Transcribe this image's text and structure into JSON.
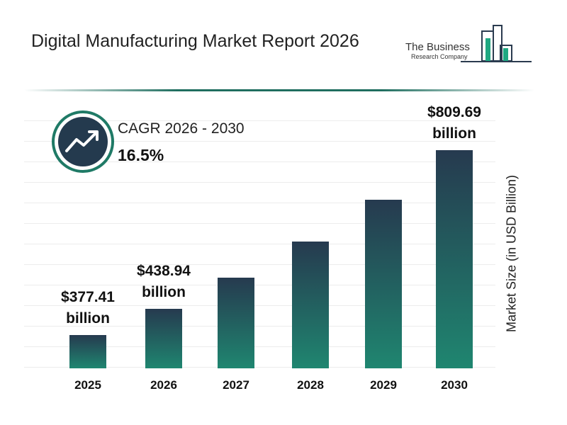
{
  "chart_data": {
    "type": "bar",
    "title": "Digital Manufacturing Market Report 2026",
    "logo": {
      "line1": "The Business",
      "line2": "Research Company"
    },
    "cagr_label": "CAGR 2026 - 2030",
    "cagr_value": "16.5%",
    "y_label": "Market Size (in USD Billion)",
    "categories": [
      "2025",
      "2026",
      "2027",
      "2028",
      "2029",
      "2030"
    ],
    "values": [
      377.41,
      438.94,
      511.4,
      595.8,
      694.1,
      809.69
    ],
    "value_labels": [
      "$377.41 billion",
      "$438.94 billion",
      null,
      null,
      null,
      "$809.69 billion"
    ],
    "gradient": [
      "#263a4f",
      "#1f8670"
    ],
    "ylim": [
      300,
      850
    ]
  }
}
